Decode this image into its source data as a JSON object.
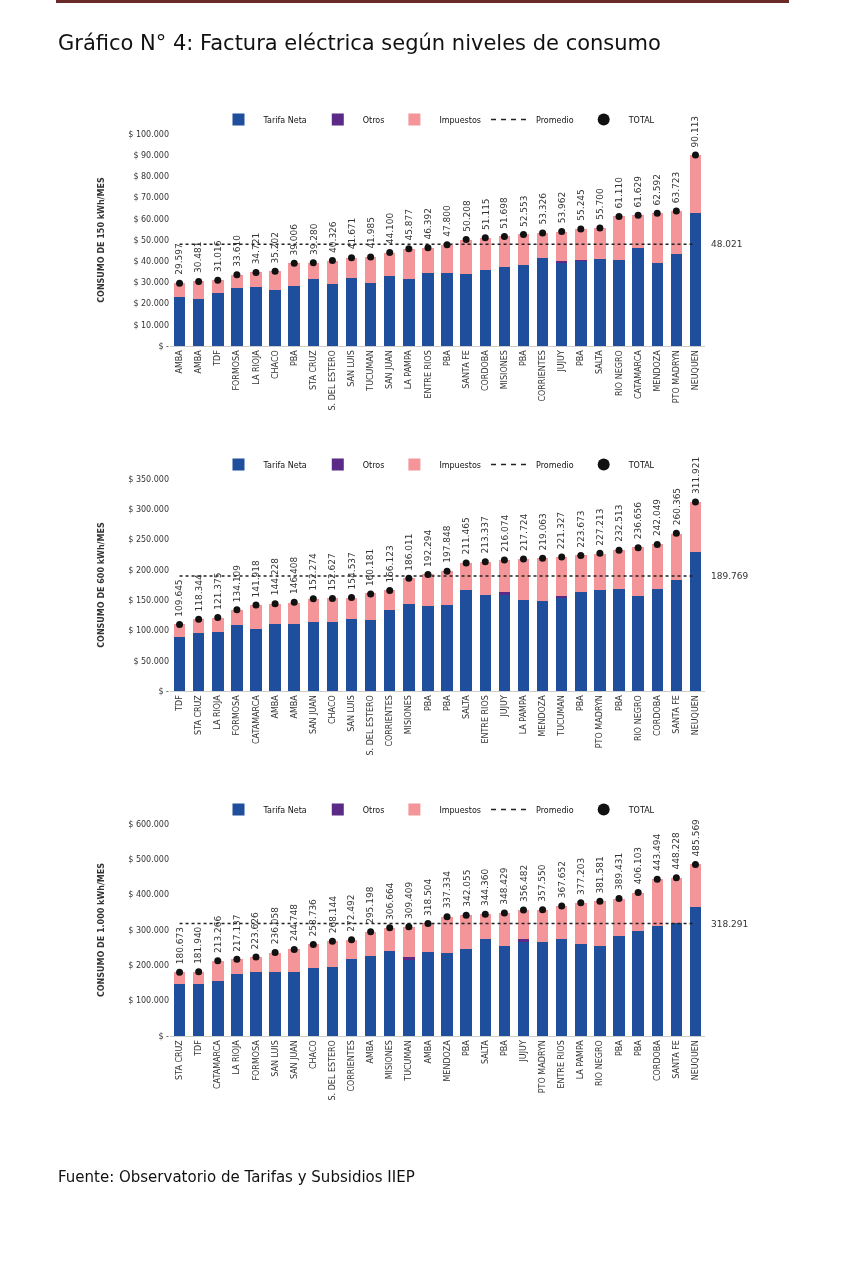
{
  "chart_data": [
    {
      "type": "bar",
      "title": "Gráfico N° 4: Factura eléctrica según niveles de consumo",
      "ylabel": "CONSUMO DE 150 kWh/MES",
      "stacked": true,
      "legend": "top",
      "categories": [
        "AMBA",
        "AMBA",
        "TDF",
        "FORMOSA",
        "LA RIOJA",
        "CHACO",
        "PBA",
        "STA CRUZ",
        "S. DEL ESTERO",
        "SAN LUIS",
        "TUCUMAN",
        "SAN JUAN",
        "LA PAMPA",
        "ENTRE RIOS",
        "PBA",
        "SANTA FE",
        "CORDOBA",
        "MISIONES",
        "PBA",
        "CORRIENTES",
        "JUJUY",
        "PBA",
        "SALTA",
        "RIO NEGRO",
        "CATAMARCA",
        "MENDOZA",
        "PTO MADRYN",
        "NEUQUEN"
      ],
      "ylim": [
        0,
        100000
      ],
      "yticks": [
        {
          "value": 0,
          "label": "$ -"
        },
        {
          "value": 10000,
          "label": "$ 10.000"
        },
        {
          "value": 20000,
          "label": "$ 20.000"
        },
        {
          "value": 30000,
          "label": "$ 30.000"
        },
        {
          "value": 40000,
          "label": "$ 40.000"
        },
        {
          "value": 50000,
          "label": "$ 50.000"
        },
        {
          "value": 60000,
          "label": "$ 60.000"
        },
        {
          "value": 70000,
          "label": "$ 70.000"
        },
        {
          "value": 80000,
          "label": "$ 80.000"
        },
        {
          "value": 90000,
          "label": "$ 90.000"
        },
        {
          "value": 100000,
          "label": "$ 100.000"
        }
      ],
      "series": [
        {
          "name": "Tarifa Neta",
          "type": "bar",
          "color": "#1f4e9c",
          "values": [
            22900,
            22400,
            25000,
            27200,
            28000,
            26500,
            28100,
            31800,
            29400,
            32000,
            29900,
            32900,
            31800,
            34500,
            34500,
            34100,
            35700,
            37100,
            38100,
            41700,
            39600,
            40200,
            41100,
            40400,
            46300,
            39200,
            43200,
            62600
          ]
        },
        {
          "name": "Otros",
          "type": "bar",
          "color": "#5b2a86",
          "values": [
            0,
            0,
            0,
            0,
            0,
            0,
            0,
            0,
            0,
            0,
            0,
            0,
            0,
            0,
            0,
            0,
            0,
            0,
            0,
            0,
            500,
            500,
            0,
            0,
            0,
            0,
            0,
            0
          ]
        },
        {
          "name": "Impuestos",
          "type": "bar",
          "color": "#f4959a",
          "values": [
            6700,
            8100,
            6000,
            6400,
            6700,
            8700,
            10900,
            7500,
            10900,
            9700,
            12100,
            11200,
            14100,
            11900,
            13300,
            16100,
            15400,
            14600,
            14500,
            11600,
            13900,
            14500,
            14600,
            20700,
            15300,
            23400,
            20500,
            27500
          ]
        },
        {
          "name": "Promedio",
          "type": "line",
          "color": "#222222",
          "line_style": "dotted",
          "values": [
            48021,
            48021,
            48021,
            48021,
            48021,
            48021,
            48021,
            48021,
            48021,
            48021,
            48021,
            48021,
            48021,
            48021,
            48021,
            48021,
            48021,
            48021,
            48021,
            48021,
            48021,
            48021,
            48021,
            48021,
            48021,
            48021,
            48021,
            48021
          ]
        },
        {
          "name": "TOTAL",
          "type": "scatter",
          "color": "#111111",
          "marker": "circle",
          "values": [
            29597,
            30481,
            31016,
            33610,
            34721,
            35202,
            39006,
            39280,
            40326,
            41671,
            41985,
            44100,
            45877,
            46392,
            47800,
            50208,
            51115,
            51698,
            52553,
            53326,
            53962,
            55245,
            55700,
            61110,
            61629,
            62592,
            63723,
            90113
          ],
          "value_labels": [
            "29.597",
            "30.481",
            "31.016",
            "33.610",
            "34.721",
            "35.202",
            "39.006",
            "39.280",
            "40.326",
            "41.671",
            "41.985",
            "44.100",
            "45.877",
            "46.392",
            "47.800",
            "50.208",
            "51.115",
            "51.698",
            "52.553",
            "53.326",
            "53.962",
            "55.245",
            "55.700",
            "61.110",
            "61.629",
            "62.592",
            "63.723",
            "90.113"
          ]
        }
      ],
      "annotations": [
        "48.021"
      ]
    },
    {
      "type": "bar",
      "ylabel": "CONSUMO DE 600 kWh/MES",
      "stacked": true,
      "legend": "top",
      "categories": [
        "TDF",
        "STA CRUZ",
        "LA RIOJA",
        "FORMOSA",
        "CATAMARCA",
        "AMBA",
        "AMBA",
        "SAN JUAN",
        "CHACO",
        "SAN LUIS",
        "S. DEL ESTERO",
        "CORRIENTES",
        "MISIONES",
        "PBA",
        "PBA",
        "SALTA",
        "ENTRE RIOS",
        "JUJUY",
        "LA PAMPA",
        "MENDOZA",
        "TUCUMAN",
        "PBA",
        "PTO MADRYN",
        "PBA",
        "RIO NEGRO",
        "CORDOBA",
        "SANTA FE",
        "NEUQUEN"
      ],
      "ylim": [
        0,
        350000
      ],
      "yticks": [
        {
          "value": 0,
          "label": "$ -"
        },
        {
          "value": 50000,
          "label": "$ 50.000"
        },
        {
          "value": 100000,
          "label": "$ 100.000"
        },
        {
          "value": 150000,
          "label": "$ 150.000"
        },
        {
          "value": 200000,
          "label": "$ 200.000"
        },
        {
          "value": 250000,
          "label": "$ 250.000"
        },
        {
          "value": 300000,
          "label": "$ 300.000"
        },
        {
          "value": 350000,
          "label": "$ 350.000"
        }
      ],
      "series": [
        {
          "name": "Tarifa Neta",
          "type": "bar",
          "color": "#1f4e9c",
          "values": [
            89000,
            96000,
            97000,
            109000,
            103000,
            110000,
            110000,
            114000,
            114000,
            119000,
            117000,
            133000,
            144000,
            140000,
            142000,
            166000,
            159000,
            159000,
            151000,
            149000,
            155000,
            163000,
            166000,
            169000,
            157000,
            169000,
            183000,
            229000
          ]
        },
        {
          "name": "Otros",
          "type": "bar",
          "color": "#5b2a86",
          "values": [
            0,
            0,
            0,
            0,
            0,
            0,
            0,
            0,
            0,
            0,
            0,
            0,
            0,
            0,
            0,
            0,
            0,
            5000,
            0,
            0,
            2000,
            0,
            0,
            0,
            0,
            0,
            0,
            0
          ]
        },
        {
          "name": "Impuestos",
          "type": "bar",
          "color": "#f4959a",
          "values": [
            21000,
            23000,
            24000,
            25000,
            39000,
            34000,
            36000,
            38000,
            39000,
            35000,
            44000,
            33000,
            42000,
            53000,
            56000,
            45000,
            54000,
            52000,
            67000,
            70000,
            65000,
            61000,
            61000,
            64000,
            80000,
            73000,
            77000,
            83000
          ]
        },
        {
          "name": "Promedio",
          "type": "line",
          "color": "#222222",
          "line_style": "dotted",
          "values": [
            189769,
            189769,
            189769,
            189769,
            189769,
            189769,
            189769,
            189769,
            189769,
            189769,
            189769,
            189769,
            189769,
            189769,
            189769,
            189769,
            189769,
            189769,
            189769,
            189769,
            189769,
            189769,
            189769,
            189769,
            189769,
            189769,
            189769,
            189769
          ]
        },
        {
          "name": "TOTAL",
          "type": "scatter",
          "color": "#111111",
          "marker": "circle",
          "values": [
            109645,
            118344,
            121375,
            134109,
            141918,
            144228,
            146408,
            152274,
            152627,
            154537,
            160181,
            166123,
            186011,
            192294,
            197848,
            211465,
            213337,
            216074,
            217724,
            219063,
            221327,
            223673,
            227213,
            232513,
            236656,
            242049,
            260365,
            311921
          ],
          "value_labels": [
            "109.645",
            "118.344",
            "121.375",
            "134.109",
            "141.918",
            "144.228",
            "146.408",
            "152.274",
            "152.627",
            "154.537",
            "160.181",
            "166.123",
            "186.011",
            "192.294",
            "197.848",
            "211.465",
            "213.337",
            "216.074",
            "217.724",
            "219.063",
            "221.327",
            "223.673",
            "227.213",
            "232.513",
            "236.656",
            "242.049",
            "260.365",
            "311.921"
          ]
        }
      ],
      "annotations": [
        "189.769"
      ]
    },
    {
      "type": "bar",
      "ylabel": "CONSUMO DE 1.000 kWh/MES",
      "stacked": true,
      "legend": "top",
      "categories": [
        "STA CRUZ",
        "TDF",
        "CATAMARCA",
        "LA RIOJA",
        "FORMOSA",
        "SAN LUIS",
        "SAN JUAN",
        "CHACO",
        "S. DEL ESTERO",
        "CORRIENTES",
        "AMBA",
        "MISIONES",
        "TUCUMAN",
        "AMBA",
        "MENDOZA",
        "PBA",
        "SALTA",
        "PBA",
        "JUJUY",
        "PTO MADRYN",
        "ENTRE RIOS",
        "LA PAMPA",
        "RIO NEGRO",
        "PBA",
        "PBA",
        "CORDOBA",
        "SANTA FE",
        "NEUQUEN"
      ],
      "ylim": [
        0,
        600000
      ],
      "yticks": [
        {
          "value": 0,
          "label": "$ -"
        },
        {
          "value": 100000,
          "label": "$ 100.000"
        },
        {
          "value": 200000,
          "label": "$ 200.000"
        },
        {
          "value": 300000,
          "label": "$ 300.000"
        },
        {
          "value": 400000,
          "label": "$ 400.000"
        },
        {
          "value": 500000,
          "label": "$ 500.000"
        },
        {
          "value": 600000,
          "label": "$ 600.000"
        }
      ],
      "series": [
        {
          "name": "Tarifa Neta",
          "type": "bar",
          "color": "#1f4e9c",
          "values": [
            147000,
            147000,
            156000,
            176000,
            180000,
            182000,
            182000,
            192000,
            196000,
            218000,
            227000,
            241000,
            216000,
            238000,
            234000,
            247000,
            275000,
            254000,
            267000,
            265000,
            274000,
            261000,
            254000,
            283000,
            296000,
            310000,
            321000,
            364000
          ]
        },
        {
          "name": "Otros",
          "type": "bar",
          "color": "#5b2a86",
          "values": [
            0,
            0,
            0,
            0,
            0,
            0,
            0,
            0,
            0,
            0,
            0,
            0,
            7000,
            0,
            0,
            0,
            0,
            0,
            7000,
            0,
            0,
            0,
            0,
            0,
            0,
            0,
            0,
            0
          ]
        },
        {
          "name": "Impuestos",
          "type": "bar",
          "color": "#f4959a",
          "values": [
            34000,
            35000,
            57000,
            42000,
            44000,
            54000,
            63000,
            67000,
            72000,
            54000,
            68000,
            66000,
            86000,
            81000,
            103000,
            95000,
            70000,
            94000,
            82000,
            93000,
            94000,
            116000,
            128000,
            106000,
            110000,
            133000,
            127000,
            122000
          ]
        },
        {
          "name": "Promedio",
          "type": "line",
          "color": "#222222",
          "line_style": "dotted",
          "values": [
            318291,
            318291,
            318291,
            318291,
            318291,
            318291,
            318291,
            318291,
            318291,
            318291,
            318291,
            318291,
            318291,
            318291,
            318291,
            318291,
            318291,
            318291,
            318291,
            318291,
            318291,
            318291,
            318291,
            318291,
            318291,
            318291,
            318291,
            318291
          ]
        },
        {
          "name": "TOTAL",
          "type": "scatter",
          "color": "#111111",
          "marker": "circle",
          "values": [
            180673,
            181940,
            213266,
            217137,
            223626,
            236058,
            244748,
            258736,
            268144,
            272492,
            295198,
            306664,
            309409,
            318504,
            337334,
            342055,
            344360,
            348429,
            356482,
            357550,
            367652,
            377203,
            381581,
            389431,
            406103,
            443494,
            448228,
            485569
          ],
          "value_labels": [
            "180.673",
            "181.940",
            "213.266",
            "217.137",
            "223.626",
            "236.058",
            "244.748",
            "258.736",
            "268.144",
            "272.492",
            "295.198",
            "306.664",
            "309.409",
            "318.504",
            "337.334",
            "342.055",
            "344.360",
            "348.429",
            "356.482",
            "357.550",
            "367.652",
            "377.203",
            "381.581",
            "389.431",
            "406.103",
            "443.494",
            "448.228",
            "485.569"
          ]
        }
      ],
      "annotations": [
        "318.291",
        "Fuente: Observatorio de Tarifas y Subsidios IIEP"
      ]
    }
  ]
}
